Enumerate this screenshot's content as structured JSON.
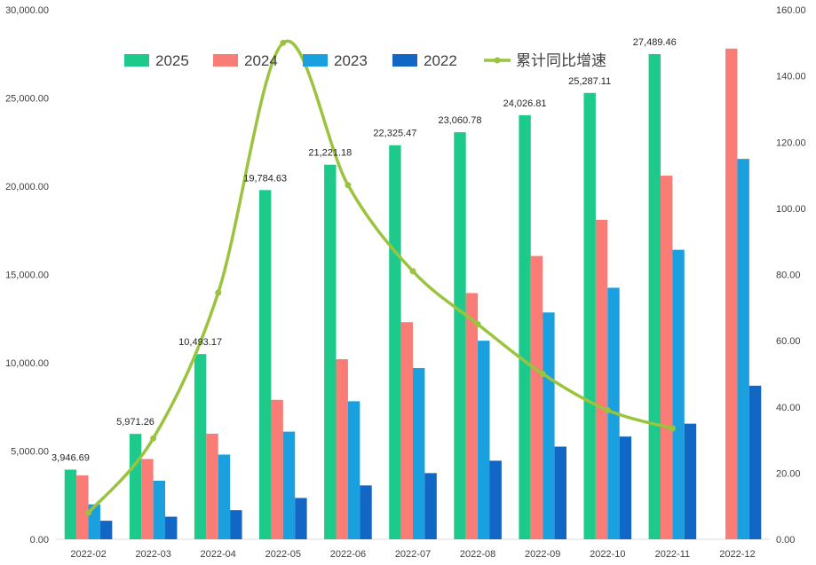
{
  "chart_data": {
    "type": "bar",
    "categories": [
      "2022-02",
      "2022-03",
      "2022-04",
      "2022-05",
      "2022-06",
      "2022-07",
      "2022-08",
      "2022-09",
      "2022-10",
      "2022-11",
      "2022-12"
    ],
    "series": [
      {
        "name": "2025",
        "color": "#1ec98c",
        "values": [
          3946.69,
          5971.26,
          10493.17,
          19784.63,
          21221.18,
          22325.47,
          23060.78,
          24026.81,
          25287.11,
          27489.46,
          null
        ]
      },
      {
        "name": "2024",
        "color": "#f97c76",
        "values": [
          3620,
          4550,
          5980,
          7900,
          10200,
          12300,
          13950,
          16050,
          18100,
          20600,
          27800
        ]
      },
      {
        "name": "2023",
        "color": "#1aa0de",
        "values": [
          1980,
          3320,
          4800,
          6100,
          7820,
          9700,
          11250,
          12850,
          14250,
          16400,
          21550
        ]
      },
      {
        "name": "2022",
        "color": "#1266c4",
        "values": [
          1050,
          1280,
          1650,
          2340,
          3050,
          3750,
          4450,
          5250,
          5820,
          6550,
          8700
        ]
      }
    ],
    "line": {
      "name": "累计同比增速",
      "color": "#9bc43e",
      "axis": "right",
      "values": [
        8,
        30.5,
        74.5,
        150,
        107,
        81,
        65,
        50,
        39,
        33.5,
        null
      ]
    },
    "data_labels": [
      "3,946.69",
      "5,971.26",
      "10,493.17",
      "19,784.63",
      "21,221.18",
      "22,325.47",
      "23,060.78",
      "24,026.81",
      "25,287.11",
      "27,489.46"
    ],
    "y_left": {
      "min": 0,
      "max": 30000,
      "ticks": [
        "0.00",
        "5,000.00",
        "10,000.00",
        "15,000.00",
        "20,000.00",
        "25,000.00",
        "30,000.00"
      ]
    },
    "y_right": {
      "min": 0,
      "max": 160,
      "ticks": [
        "0.00",
        "20.00",
        "40.00",
        "60.00",
        "80.00",
        "100.00",
        "120.00",
        "140.00",
        "160.00"
      ]
    },
    "title": "",
    "xlabel": "",
    "ylabel": "",
    "grid": false,
    "legend_position": "top"
  }
}
